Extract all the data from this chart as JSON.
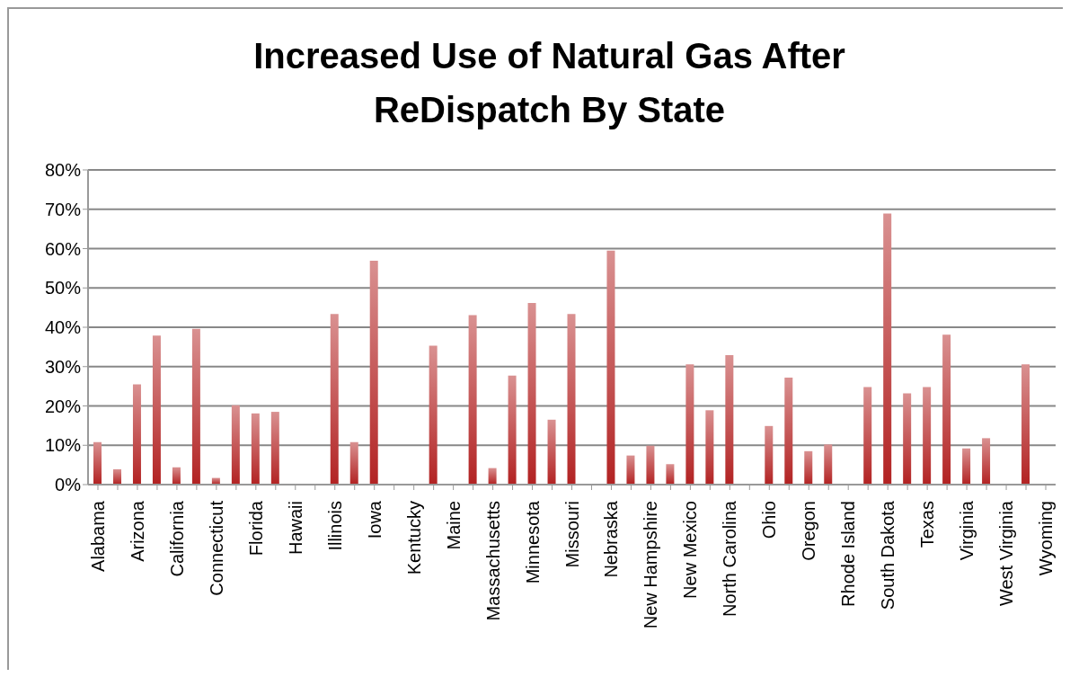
{
  "chart_data": {
    "type": "bar",
    "title": "Increased Use of Natural Gas After ReDispatch By State",
    "categories": [
      "Alabama",
      null,
      "Arizona",
      null,
      "California",
      null,
      "Connecticut",
      null,
      "Florida",
      null,
      "Hawaii",
      null,
      "Illinois",
      null,
      "Iowa",
      null,
      "Kentucky",
      null,
      "Maine",
      null,
      "Massachusetts",
      null,
      "Minnesota",
      null,
      "Missouri",
      null,
      "Nebraska",
      null,
      "New Hampshire",
      null,
      "New Mexico",
      null,
      "North Carolina",
      null,
      "Ohio",
      null,
      "Oregon",
      null,
      "Rhode Island",
      null,
      "South Dakota",
      null,
      "Texas",
      null,
      "Virginia",
      null,
      "West Virginia",
      null,
      "Wyoming"
    ],
    "values": [
      10.8,
      3.9,
      25.5,
      37.9,
      4.4,
      39.6,
      1.7,
      20.2,
      18.1,
      18.5,
      0,
      0,
      43.4,
      10.8,
      56.9,
      0,
      0,
      35.3,
      0,
      43.1,
      4.2,
      27.7,
      46.2,
      16.5,
      43.4,
      0,
      59.5,
      7.4,
      9.9,
      5.2,
      30.6,
      18.9,
      32.9,
      0,
      14.9,
      27.2,
      8.5,
      10.2,
      0,
      24.8,
      68.9,
      23.2,
      24.8,
      38.1,
      9.2,
      11.8,
      0,
      30.6,
      0
    ],
    "color": "#b22222",
    "ylim": [
      0,
      80
    ],
    "yticks": [
      {
        "value": 0,
        "label": "0%"
      },
      {
        "value": 10,
        "label": "10%"
      },
      {
        "value": 20,
        "label": "20%"
      },
      {
        "value": 30,
        "label": "30%"
      },
      {
        "value": 40,
        "label": "40%"
      },
      {
        "value": 50,
        "label": "50%"
      },
      {
        "value": 60,
        "label": "60%"
      },
      {
        "value": 70,
        "label": "70%"
      },
      {
        "value": 80,
        "label": "80%"
      }
    ],
    "grid": "y"
  }
}
